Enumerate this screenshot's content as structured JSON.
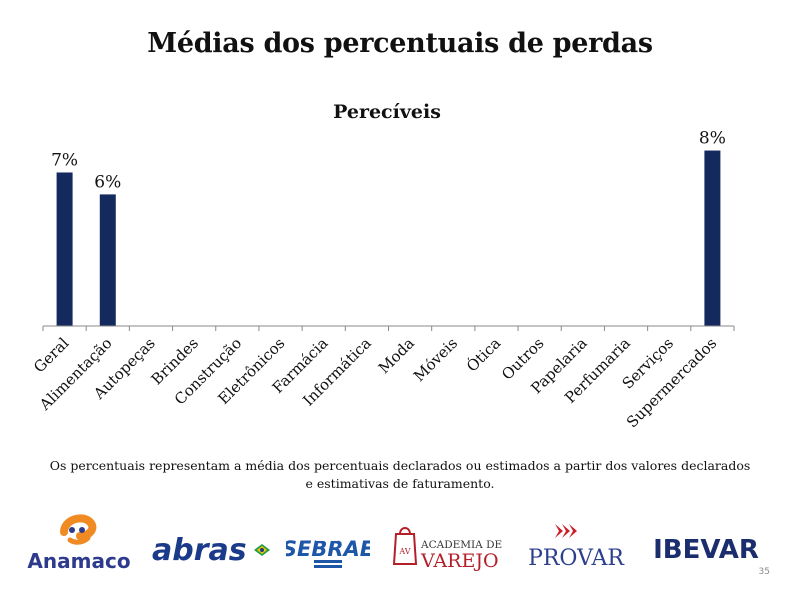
{
  "slide": {
    "title": "Médias dos percentuais de perdas",
    "footnote_line1": "Os percentuais representam a média dos percentuais declarados ou estimados a partir dos valores declarados",
    "footnote_line2": "e estimativas de faturamento.",
    "page_number": "35"
  },
  "chart_data": {
    "type": "bar",
    "title": "Perecíveis",
    "categories": [
      "Geral",
      "Alimentação",
      "Autopeças",
      "Brindes",
      "Construção",
      "Eletrônicos",
      "Farmácia",
      "Informática",
      "Moda",
      "Móveis",
      "Ótica",
      "Outros",
      "Papelaria",
      "Perfumaria",
      "Serviços",
      "Supermercados"
    ],
    "values": [
      7,
      6,
      null,
      null,
      null,
      null,
      null,
      null,
      null,
      null,
      null,
      null,
      null,
      null,
      null,
      8
    ],
    "data_labels": [
      "7%",
      "6%",
      "",
      "",
      "",
      "",
      "",
      "",
      "",
      "",
      "",
      "",
      "",
      "",
      "",
      "8%"
    ],
    "ylim": [
      0,
      8.8
    ],
    "y_axis_visible": false,
    "grid": false,
    "bar_color": "#14295e"
  },
  "logos": {
    "anamaco": {
      "text": "Anamaco",
      "colors": [
        "#f08a22",
        "#2e3a8c"
      ],
      "icon": "anamaco-swirl-icon"
    },
    "abras": {
      "text": "abras",
      "colors": [
        "#1b3a8a",
        "#1f9d4a",
        "#f2c500"
      ],
      "icon": "brazil-flag-icon"
    },
    "sebrae": {
      "text": "SEBRAE",
      "colors": [
        "#1e56a8"
      ]
    },
    "academia": {
      "line1": "ACADEMIA DE",
      "line2": "VAREJO",
      "monogram": "AV",
      "colors": [
        "#b3202a",
        "#333333"
      ],
      "icon": "shopping-bag-icon"
    },
    "provar": {
      "text": "PROVAR",
      "colors": [
        "#c8202a",
        "#2b3f8c"
      ],
      "icon": "provar-arrows-icon"
    },
    "ibevar": {
      "text": "IBEVAR",
      "colors": [
        "#1c2d6e"
      ]
    }
  }
}
